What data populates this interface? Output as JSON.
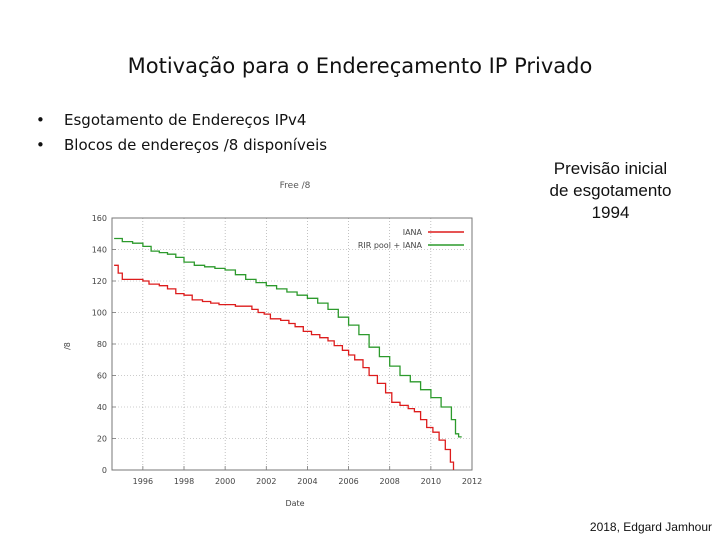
{
  "slide": {
    "title": "Motivação para o Endereçamento IP Privado",
    "bullets": [
      "Esgotamento de Endereços IPv4",
      "Blocos de endereços  /8 disponíveis"
    ],
    "note_lines": [
      "Previsão inicial",
      "de esgotamento",
      "1994"
    ],
    "footer": "2018, Edgard Jamhour"
  },
  "chart_data": {
    "type": "line",
    "title": "Free /8",
    "xlabel": "Date",
    "ylabel": "/8",
    "xlim": [
      1994.5,
      2012
    ],
    "ylim": [
      0,
      160
    ],
    "xticks": [
      1996,
      1998,
      2000,
      2002,
      2004,
      2006,
      2008,
      2010,
      2012
    ],
    "yticks": [
      0,
      20,
      40,
      60,
      80,
      100,
      120,
      140,
      160
    ],
    "grid": true,
    "legend": "top-right",
    "series": [
      {
        "name": "IANA",
        "color": "#dd1c1c",
        "points": [
          [
            1994.6,
            130
          ],
          [
            1994.8,
            125
          ],
          [
            1995.0,
            121
          ],
          [
            1995.5,
            121
          ],
          [
            1996.0,
            120
          ],
          [
            1996.3,
            118
          ],
          [
            1996.8,
            117
          ],
          [
            1997.2,
            115
          ],
          [
            1997.6,
            112
          ],
          [
            1998.0,
            111
          ],
          [
            1998.4,
            108
          ],
          [
            1998.9,
            107
          ],
          [
            1999.3,
            106
          ],
          [
            1999.7,
            105
          ],
          [
            2000.2,
            105
          ],
          [
            2000.5,
            104
          ],
          [
            2001.0,
            104
          ],
          [
            2001.3,
            102
          ],
          [
            2001.6,
            100
          ],
          [
            2001.9,
            99
          ],
          [
            2002.2,
            96
          ],
          [
            2002.7,
            95
          ],
          [
            2003.1,
            93
          ],
          [
            2003.4,
            91
          ],
          [
            2003.8,
            88
          ],
          [
            2004.2,
            86
          ],
          [
            2004.6,
            84
          ],
          [
            2005.0,
            82
          ],
          [
            2005.3,
            79
          ],
          [
            2005.7,
            76
          ],
          [
            2006.0,
            73
          ],
          [
            2006.3,
            70
          ],
          [
            2006.7,
            65
          ],
          [
            2007.0,
            60
          ],
          [
            2007.4,
            55
          ],
          [
            2007.8,
            49
          ],
          [
            2008.1,
            43
          ],
          [
            2008.5,
            41
          ],
          [
            2008.9,
            39
          ],
          [
            2009.2,
            37
          ],
          [
            2009.5,
            32
          ],
          [
            2009.8,
            27
          ],
          [
            2010.1,
            24
          ],
          [
            2010.4,
            19
          ],
          [
            2010.7,
            13
          ],
          [
            2010.95,
            5
          ],
          [
            2011.1,
            0
          ]
        ]
      },
      {
        "name": "RIR pool + IANA",
        "color": "#2c9a2c",
        "points": [
          [
            1994.6,
            147
          ],
          [
            1995.0,
            145
          ],
          [
            1995.5,
            144
          ],
          [
            1996.0,
            142
          ],
          [
            1996.4,
            139
          ],
          [
            1996.8,
            138
          ],
          [
            1997.2,
            137
          ],
          [
            1997.6,
            135
          ],
          [
            1998.0,
            132
          ],
          [
            1998.5,
            130
          ],
          [
            1999.0,
            129
          ],
          [
            1999.5,
            128
          ],
          [
            2000.0,
            127
          ],
          [
            2000.5,
            124
          ],
          [
            2001.0,
            121
          ],
          [
            2001.5,
            119
          ],
          [
            2002.0,
            117
          ],
          [
            2002.5,
            115
          ],
          [
            2003.0,
            113
          ],
          [
            2003.5,
            111
          ],
          [
            2004.0,
            109
          ],
          [
            2004.5,
            106
          ],
          [
            2005.0,
            102
          ],
          [
            2005.5,
            97
          ],
          [
            2006.0,
            92
          ],
          [
            2006.5,
            86
          ],
          [
            2007.0,
            78
          ],
          [
            2007.5,
            72
          ],
          [
            2008.0,
            66
          ],
          [
            2008.5,
            60
          ],
          [
            2009.0,
            56
          ],
          [
            2009.5,
            51
          ],
          [
            2010.0,
            46
          ],
          [
            2010.5,
            40
          ],
          [
            2011.0,
            32
          ],
          [
            2011.2,
            23
          ],
          [
            2011.35,
            21
          ],
          [
            2011.5,
            21
          ]
        ]
      }
    ]
  }
}
